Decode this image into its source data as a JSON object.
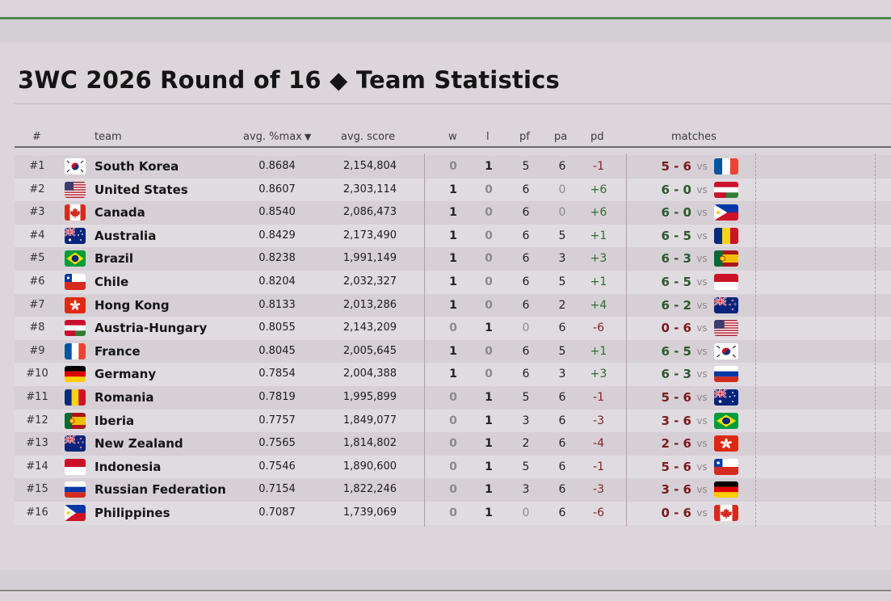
{
  "title": "3WC 2026 Round of 16 ◆ Team Statistics",
  "columns": {
    "rank": "#",
    "team": "team",
    "avg_max": "avg. %max",
    "sort_indicator": "▼",
    "avg_score": "avg. score",
    "w": "w",
    "l": "l",
    "pf": "pf",
    "pa": "pa",
    "pd": "pd",
    "matches": "matches"
  },
  "vs_label": "vs",
  "colors": {
    "positive": "#2c6e2f",
    "negative": "#8c2020",
    "zero": "#8a8a8a",
    "accent_line": "#4f8a52"
  },
  "rows": [
    {
      "rank": "#1",
      "team": "South Korea",
      "flag": "south-korea",
      "avg_max": "0.8684",
      "avg_score": "2,154,804",
      "w": "0",
      "l": "1",
      "pf": "5",
      "pa": "6",
      "pd": "-1",
      "match_score": "5 - 6",
      "opponent_flag": "france"
    },
    {
      "rank": "#2",
      "team": "United States",
      "flag": "united-states",
      "avg_max": "0.8607",
      "avg_score": "2,303,114",
      "w": "1",
      "l": "0",
      "pf": "6",
      "pa": "0",
      "pd": "+6",
      "match_score": "6 - 0",
      "opponent_flag": "austria-hungary"
    },
    {
      "rank": "#3",
      "team": "Canada",
      "flag": "canada",
      "avg_max": "0.8540",
      "avg_score": "2,086,473",
      "w": "1",
      "l": "0",
      "pf": "6",
      "pa": "0",
      "pd": "+6",
      "match_score": "6 - 0",
      "opponent_flag": "philippines"
    },
    {
      "rank": "#4",
      "team": "Australia",
      "flag": "australia",
      "avg_max": "0.8429",
      "avg_score": "2,173,490",
      "w": "1",
      "l": "0",
      "pf": "6",
      "pa": "5",
      "pd": "+1",
      "match_score": "6 - 5",
      "opponent_flag": "romania"
    },
    {
      "rank": "#5",
      "team": "Brazil",
      "flag": "brazil",
      "avg_max": "0.8238",
      "avg_score": "1,991,149",
      "w": "1",
      "l": "0",
      "pf": "6",
      "pa": "3",
      "pd": "+3",
      "match_score": "6 - 3",
      "opponent_flag": "iberia"
    },
    {
      "rank": "#6",
      "team": "Chile",
      "flag": "chile",
      "avg_max": "0.8204",
      "avg_score": "2,032,327",
      "w": "1",
      "l": "0",
      "pf": "6",
      "pa": "5",
      "pd": "+1",
      "match_score": "6 - 5",
      "opponent_flag": "indonesia"
    },
    {
      "rank": "#7",
      "team": "Hong Kong",
      "flag": "hong-kong",
      "avg_max": "0.8133",
      "avg_score": "2,013,286",
      "w": "1",
      "l": "0",
      "pf": "6",
      "pa": "2",
      "pd": "+4",
      "match_score": "6 - 2",
      "opponent_flag": "new-zealand"
    },
    {
      "rank": "#8",
      "team": "Austria-Hungary",
      "flag": "austria-hungary",
      "avg_max": "0.8055",
      "avg_score": "2,143,209",
      "w": "0",
      "l": "1",
      "pf": "0",
      "pa": "6",
      "pd": "-6",
      "match_score": "0 - 6",
      "opponent_flag": "united-states"
    },
    {
      "rank": "#9",
      "team": "France",
      "flag": "france",
      "avg_max": "0.8045",
      "avg_score": "2,005,645",
      "w": "1",
      "l": "0",
      "pf": "6",
      "pa": "5",
      "pd": "+1",
      "match_score": "6 - 5",
      "opponent_flag": "south-korea"
    },
    {
      "rank": "#10",
      "team": "Germany",
      "flag": "germany",
      "avg_max": "0.7854",
      "avg_score": "2,004,388",
      "w": "1",
      "l": "0",
      "pf": "6",
      "pa": "3",
      "pd": "+3",
      "match_score": "6 - 3",
      "opponent_flag": "russia"
    },
    {
      "rank": "#11",
      "team": "Romania",
      "flag": "romania",
      "avg_max": "0.7819",
      "avg_score": "1,995,899",
      "w": "0",
      "l": "1",
      "pf": "5",
      "pa": "6",
      "pd": "-1",
      "match_score": "5 - 6",
      "opponent_flag": "australia"
    },
    {
      "rank": "#12",
      "team": "Iberia",
      "flag": "iberia",
      "avg_max": "0.7757",
      "avg_score": "1,849,077",
      "w": "0",
      "l": "1",
      "pf": "3",
      "pa": "6",
      "pd": "-3",
      "match_score": "3 - 6",
      "opponent_flag": "brazil"
    },
    {
      "rank": "#13",
      "team": "New Zealand",
      "flag": "new-zealand",
      "avg_max": "0.7565",
      "avg_score": "1,814,802",
      "w": "0",
      "l": "1",
      "pf": "2",
      "pa": "6",
      "pd": "-4",
      "match_score": "2 - 6",
      "opponent_flag": "hong-kong"
    },
    {
      "rank": "#14",
      "team": "Indonesia",
      "flag": "indonesia",
      "avg_max": "0.7546",
      "avg_score": "1,890,600",
      "w": "0",
      "l": "1",
      "pf": "5",
      "pa": "6",
      "pd": "-1",
      "match_score": "5 - 6",
      "opponent_flag": "chile"
    },
    {
      "rank": "#15",
      "team": "Russian Federation",
      "flag": "russia",
      "avg_max": "0.7154",
      "avg_score": "1,822,246",
      "w": "0",
      "l": "1",
      "pf": "3",
      "pa": "6",
      "pd": "-3",
      "match_score": "3 - 6",
      "opponent_flag": "germany"
    },
    {
      "rank": "#16",
      "team": "Philippines",
      "flag": "philippines",
      "avg_max": "0.7087",
      "avg_score": "1,739,069",
      "w": "0",
      "l": "1",
      "pf": "0",
      "pa": "6",
      "pd": "-6",
      "match_score": "0 - 6",
      "opponent_flag": "canada"
    }
  ]
}
